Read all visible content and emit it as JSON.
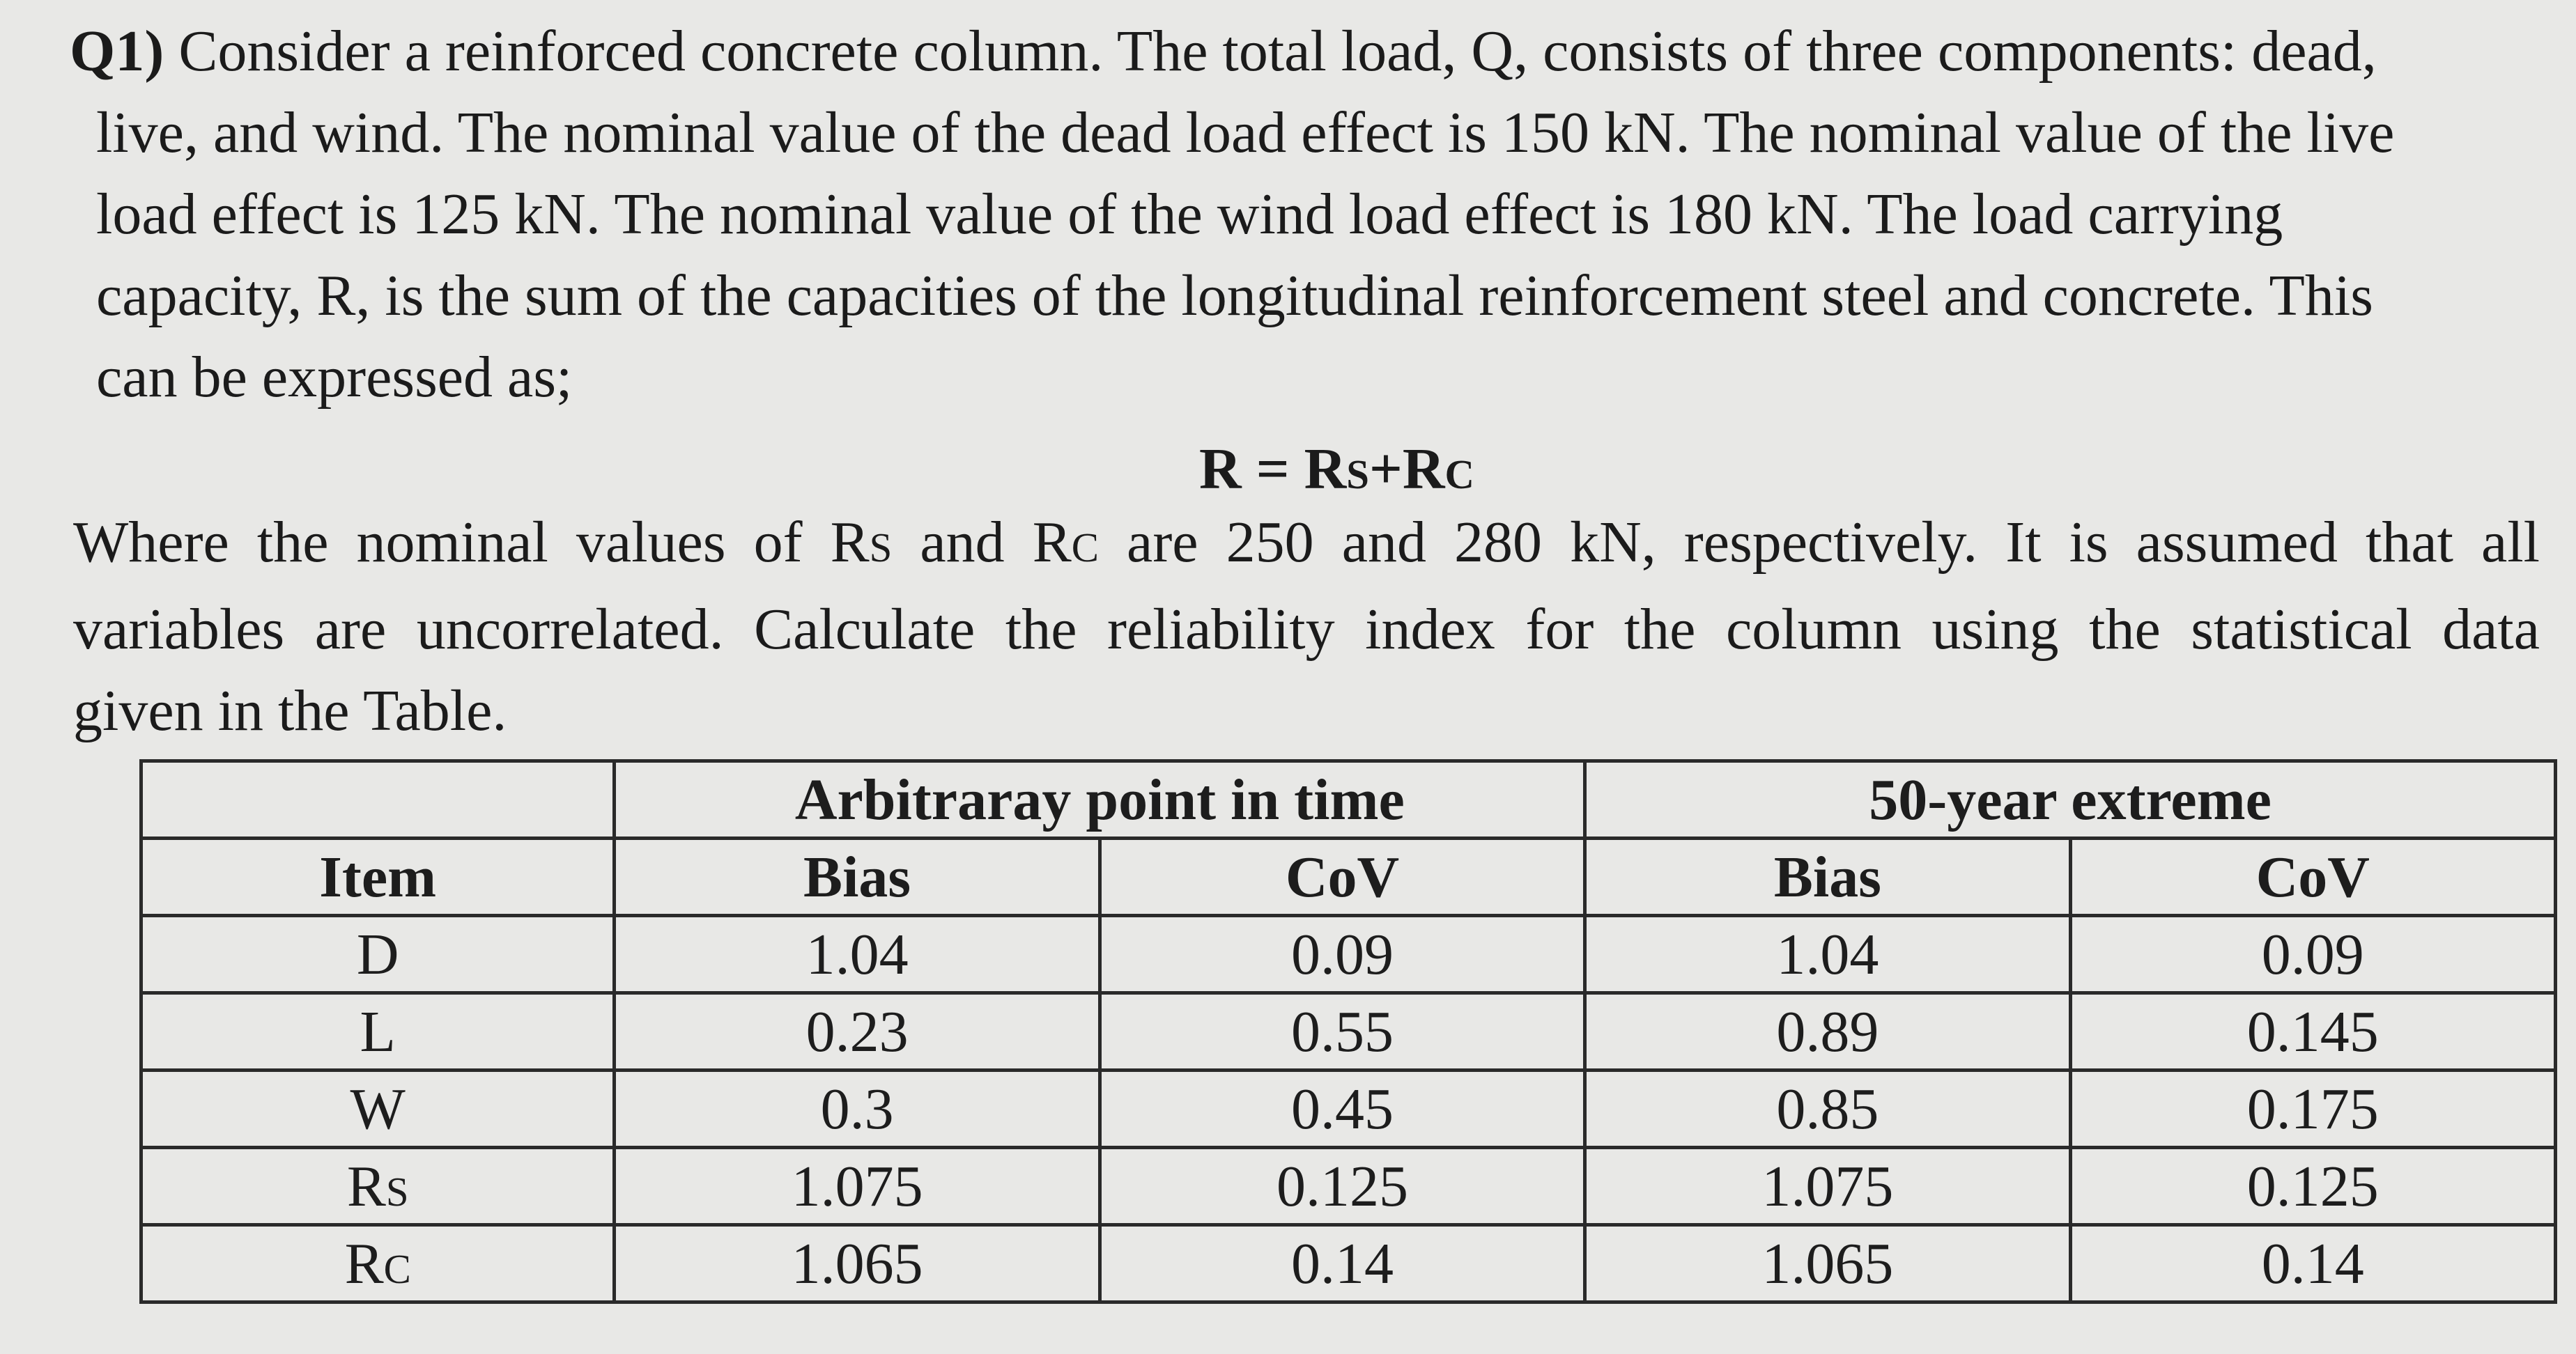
{
  "question": {
    "number": "Q1)",
    "lines": [
      "Consider a reinforced concrete column. The total load, Q, consists of three components: dead,",
      "live, and wind. The nominal value of the dead load effect is 150 kN. The nominal value of the live",
      "load effect is 125 kN. The nominal value of the wind load effect is 180 kN. The load carrying",
      "capacity, R, is the sum of the capacities of the longitudinal reinforcement steel and concrete. This",
      "can be expressed as;"
    ]
  },
  "formula": {
    "lhs": "R = R",
    "sub1": "S",
    "plus": "+R",
    "sub2": "C"
  },
  "paragraph2": {
    "l1a": "Where the nominal values of R",
    "l1s1": "S",
    "l1b": " and R",
    "l1s2": "C",
    "l1c": " are 250 and 280 kN, respectively. It is assumed that all",
    "l2": "variables are uncorrelated. Calculate the reliability index for the column using the statistical data",
    "l3": "given in the Table."
  },
  "table": {
    "group_headers": [
      "Arbitraray point in time",
      "50-year extreme"
    ],
    "sub_headers": [
      "Item",
      "Bias",
      "CoV",
      "Bias",
      "CoV"
    ],
    "rows": [
      {
        "item": "D",
        "item_sub": "",
        "apt_bias": "1.04",
        "apt_cov": "0.09",
        "ext_bias": "1.04",
        "ext_cov": "0.09"
      },
      {
        "item": "L",
        "item_sub": "",
        "apt_bias": "0.23",
        "apt_cov": "0.55",
        "ext_bias": "0.89",
        "ext_cov": "0.145"
      },
      {
        "item": "W",
        "item_sub": "",
        "apt_bias": "0.3",
        "apt_cov": "0.45",
        "ext_bias": "0.85",
        "ext_cov": "0.175"
      },
      {
        "item": "R",
        "item_sub": "S",
        "apt_bias": "1.075",
        "apt_cov": "0.125",
        "ext_bias": "1.075",
        "ext_cov": "0.125"
      },
      {
        "item": "R",
        "item_sub": "C",
        "apt_bias": "1.065",
        "apt_cov": "0.14",
        "ext_bias": "1.065",
        "ext_cov": "0.14"
      }
    ]
  }
}
